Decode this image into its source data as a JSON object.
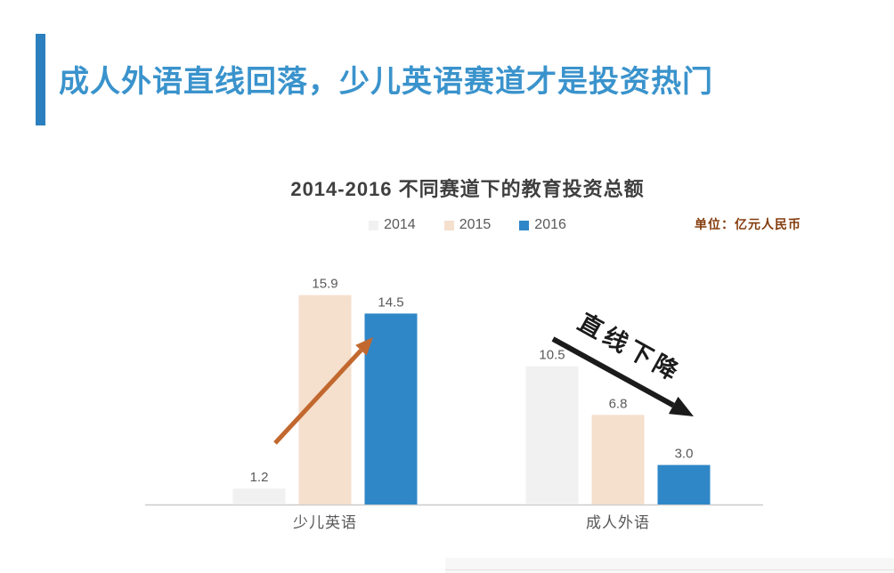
{
  "header": {
    "title": "成人外语直线回落，少儿英语赛道才是投资热门",
    "title_color": "#3a93cc",
    "accent_color": "#2b7fbe"
  },
  "chart_data": {
    "type": "bar",
    "title": "2014-2016 不同赛道下的教育投资总额",
    "unit_label": "单位：亿元人民币",
    "unit_label_color": "#843c0c",
    "categories": [
      "少儿英语",
      "成人外语"
    ],
    "series": [
      {
        "name": "2014",
        "color": "#f1f1f1",
        "values": [
          1.2,
          10.5
        ]
      },
      {
        "name": "2015",
        "color": "#f5dfcd",
        "values": [
          15.9,
          6.8
        ]
      },
      {
        "name": "2016",
        "color": "#2f87c7",
        "values": [
          14.5,
          3.0
        ]
      }
    ],
    "ylim": [
      0,
      16
    ],
    "grid": false,
    "legend_position": "top-center",
    "value_labels": true,
    "axis_color": "#cccccc",
    "label_color": "#595959",
    "annotations": [
      {
        "id": "rise-arrow",
        "type": "arrow",
        "direction": "up-right",
        "color": "#c2682f",
        "label": ""
      },
      {
        "id": "decline-arrow",
        "type": "arrow",
        "direction": "down-right",
        "color": "#1b1b1b",
        "label": "直线下降",
        "label_color": "#1b1b1b"
      }
    ]
  }
}
